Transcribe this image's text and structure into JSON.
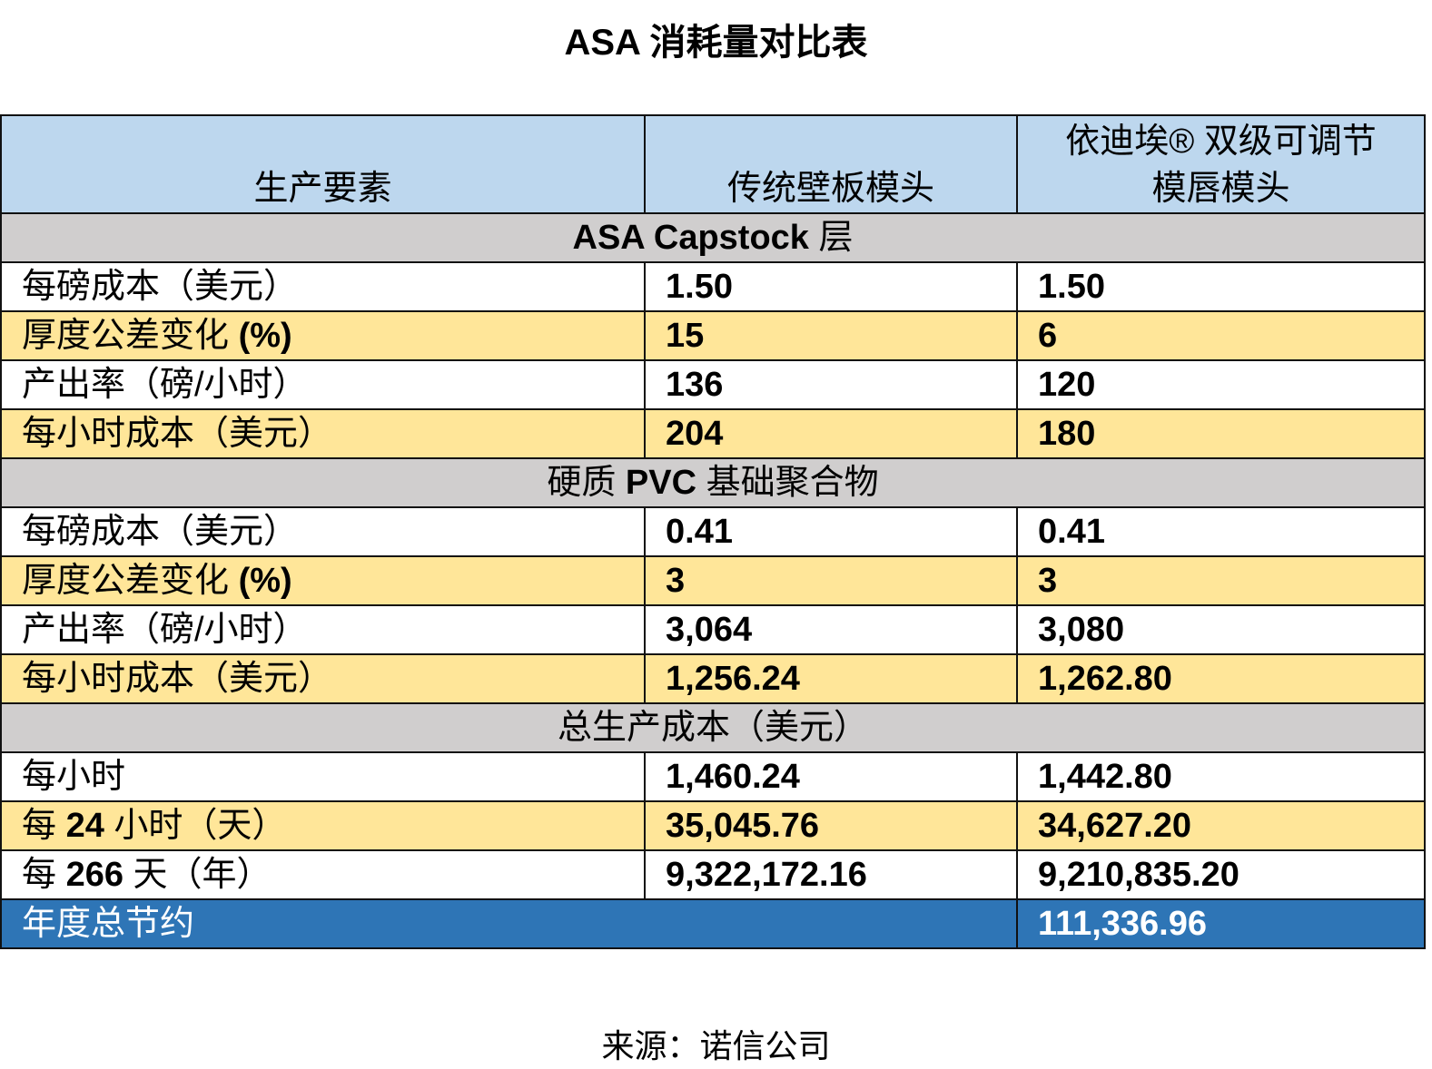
{
  "title": "ASA 消耗量对比表",
  "colors": {
    "header": "#BDD7EE",
    "section": "#D0CECE",
    "highlight": "#FFE699",
    "total": "#2E75B6"
  },
  "header": [
    "生产要素",
    "传统壁板模头",
    "依迪埃® 双级可调节\n模唇模头"
  ],
  "header_col3_lines": [
    "依迪埃® 双级可调节",
    "模唇模头"
  ],
  "sections": [
    {
      "title": "ASA Capstock 层",
      "rows": [
        {
          "label": "每磅成本（美元）",
          "a": "1.50",
          "b": "1.50"
        },
        {
          "label": "厚度公差变化 (%)",
          "a": "15",
          "b": "6"
        },
        {
          "label": "产出率（磅/小时）",
          "a": "136",
          "b": "120"
        },
        {
          "label": "每小时成本（美元）",
          "a": "204",
          "b": "180"
        }
      ]
    },
    {
      "title": "硬质 PVC 基础聚合物",
      "rows": [
        {
          "label": "每磅成本（美元）",
          "a": "0.41",
          "b": "0.41"
        },
        {
          "label": "厚度公差变化 (%)",
          "a": "3",
          "b": "3"
        },
        {
          "label": "产出率（磅/小时）",
          "a": "3,064",
          "b": "3,080"
        },
        {
          "label": "每小时成本（美元）",
          "a": "1,256.24",
          "b": "1,262.80"
        }
      ]
    },
    {
      "title": "总生产成本（美元）",
      "rows": [
        {
          "label": "每小时",
          "a": "1,460.24",
          "b": "1,442.80"
        },
        {
          "label": "每 24 小时（天）",
          "a": "35,045.76",
          "b": "34,627.20"
        },
        {
          "label": "每 266 天（年）",
          "a": "9,322,172.16",
          "b": "9,210,835.20"
        }
      ]
    }
  ],
  "total": {
    "label": "年度总节约",
    "value": "111,336.96"
  },
  "source": "来源：诺信公司"
}
